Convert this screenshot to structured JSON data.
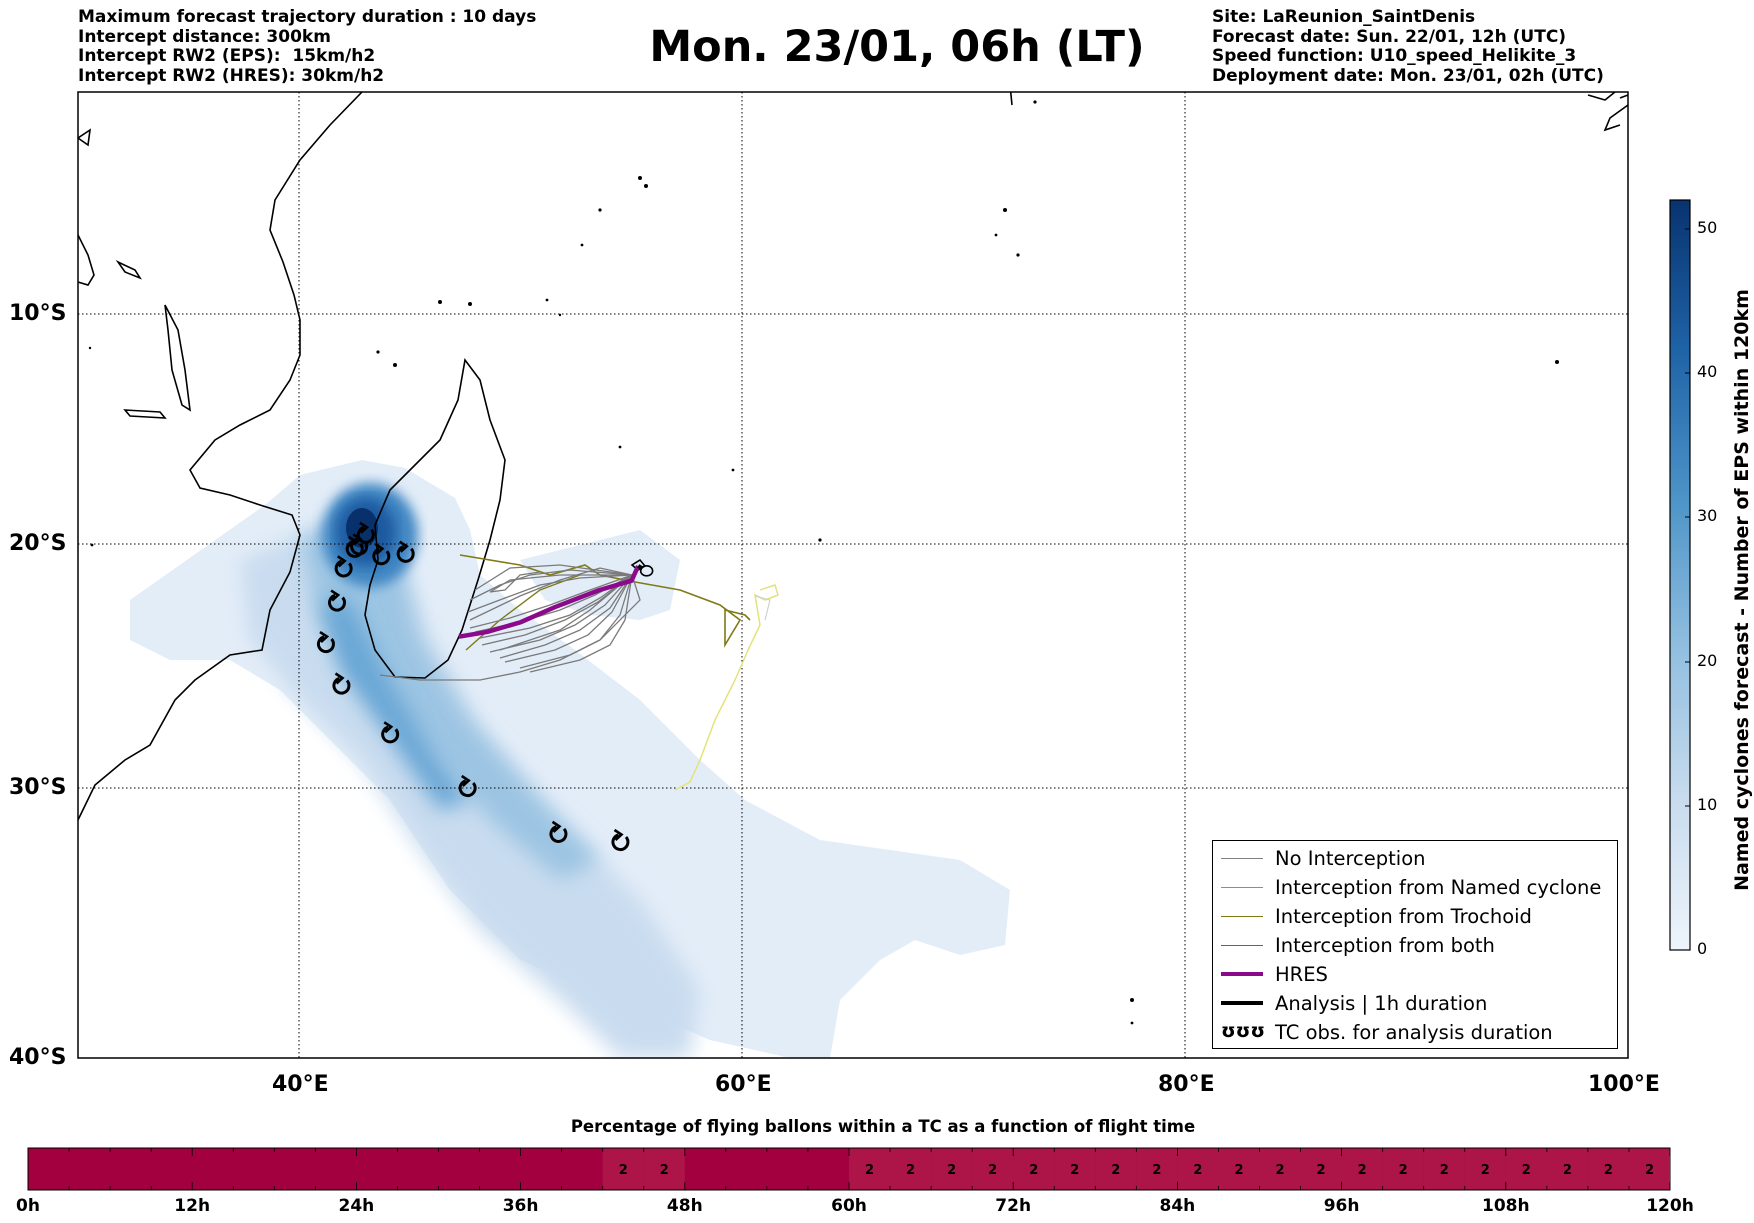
{
  "header_left": [
    "Maximum forecast trajectory duration : 10 days",
    "Intercept distance: 300km",
    "Intercept RW2 (EPS):  15km/h2",
    "Intercept RW2 (HRES): 30km/h2"
  ],
  "header_right": [
    "Site: LaReunion_SaintDenis",
    "Forecast date: Sun. 22/01, 12h (UTC)",
    "Speed function: U10_speed_Helikite_3",
    "Deployment date: Mon. 23/01, 02h (UTC)"
  ],
  "title": "Mon. 23/01, 06h (LT)",
  "colors": {
    "no_interception": "#808080",
    "named_cyclone": "#ff6a1a",
    "trochoid": "#7f7a16",
    "both": "#2e8b2e",
    "hres": "#8b0a8b",
    "analysis": "#000000",
    "percentage_bar": "#a3003f",
    "percentage_bar_cell": "#ad1448"
  },
  "map": {
    "lon_range": [
      30,
      100
    ],
    "lat_range": [
      -40,
      0
    ],
    "lon_ticks": [
      "40°E",
      "60°E",
      "80°E",
      "100°E"
    ],
    "lat_ticks": [
      "10°S",
      "20°S",
      "30°S",
      "40°S"
    ],
    "grid": true
  },
  "colorbar": {
    "label": "Named cyclones forecast - Number of EPS within 120km",
    "ticks": [
      "0",
      "10",
      "20",
      "30",
      "40",
      "50"
    ],
    "range": [
      0,
      52
    ]
  },
  "legend": [
    {
      "label": "No Interception",
      "color_key": "no_interception",
      "kind": "line"
    },
    {
      "label": "Interception from Named cyclone",
      "color_key": "named_cyclone",
      "kind": "line"
    },
    {
      "label": "Interception from Trochoid",
      "color_key": "trochoid",
      "kind": "line"
    },
    {
      "label": "Interception from both",
      "color_key": "both",
      "kind": "line"
    },
    {
      "label": "HRES",
      "color_key": "hres",
      "kind": "thick"
    },
    {
      "label": "Analysis | 1h duration",
      "color_key": "analysis",
      "kind": "thick"
    },
    {
      "label": "TC obs. for analysis duration",
      "color_key": "analysis",
      "kind": "symbol",
      "symbol": "ʊʊʊ"
    }
  ],
  "chart_data": [
    {
      "type": "scatter",
      "description_series": "TC obs. for analysis duration",
      "x_unit": "degrees east",
      "y_unit": "degrees latitude",
      "points": [
        {
          "lon": 43.0,
          "lat": -19.6
        },
        {
          "lon": 42.7,
          "lat": -20.1
        },
        {
          "lon": 42.5,
          "lat": -20.2
        },
        {
          "lon": 43.7,
          "lat": -20.5
        },
        {
          "lon": 44.8,
          "lat": -20.4
        },
        {
          "lon": 42.0,
          "lat": -21.0
        },
        {
          "lon": 41.7,
          "lat": -22.4
        },
        {
          "lon": 41.2,
          "lat": -24.1
        },
        {
          "lon": 41.9,
          "lat": -25.8
        },
        {
          "lon": 44.1,
          "lat": -27.8
        },
        {
          "lon": 47.6,
          "lat": -30.0
        },
        {
          "lon": 51.7,
          "lat": -31.7
        },
        {
          "lon": 54.5,
          "lat": -32.0
        }
      ]
    },
    {
      "type": "line",
      "description_series": "HRES",
      "points": [
        {
          "lon": 55.3,
          "lat": -20.9
        },
        {
          "lon": 55.0,
          "lat": -21.5
        },
        {
          "lon": 53.5,
          "lat": -21.9
        },
        {
          "lon": 51.5,
          "lat": -22.6
        },
        {
          "lon": 50.0,
          "lat": -23.2
        },
        {
          "lon": 48.5,
          "lat": -23.6
        },
        {
          "lon": 47.2,
          "lat": -23.8
        }
      ]
    },
    {
      "type": "line",
      "description_series": "Analysis | 1h duration",
      "points": [
        {
          "lon": 55.3,
          "lat": -20.9
        },
        {
          "lon": 55.5,
          "lat": -21.0
        }
      ]
    },
    {
      "type": "bar",
      "title": "Percentage of flying ballons within a TC as a function of flight time",
      "x_ticks": [
        "0h",
        "12h",
        "24h",
        "36h",
        "48h",
        "60h",
        "72h",
        "84h",
        "96h",
        "108h",
        "120h"
      ],
      "x_range_hours": [
        0,
        120
      ],
      "cells": [
        {
          "start_h": 42,
          "end_h": 45,
          "value": "2"
        },
        {
          "start_h": 45,
          "end_h": 48,
          "value": "2"
        },
        {
          "start_h": 60,
          "end_h": 63,
          "value": "2"
        },
        {
          "start_h": 63,
          "end_h": 66,
          "value": "2"
        },
        {
          "start_h": 66,
          "end_h": 69,
          "value": "2"
        },
        {
          "start_h": 69,
          "end_h": 72,
          "value": "2"
        },
        {
          "start_h": 72,
          "end_h": 75,
          "value": "2"
        },
        {
          "start_h": 75,
          "end_h": 78,
          "value": "2"
        },
        {
          "start_h": 78,
          "end_h": 81,
          "value": "2"
        },
        {
          "start_h": 81,
          "end_h": 84,
          "value": "2"
        },
        {
          "start_h": 84,
          "end_h": 87,
          "value": "2"
        },
        {
          "start_h": 87,
          "end_h": 90,
          "value": "2"
        },
        {
          "start_h": 90,
          "end_h": 93,
          "value": "2"
        },
        {
          "start_h": 93,
          "end_h": 96,
          "value": "2"
        },
        {
          "start_h": 96,
          "end_h": 99,
          "value": "2"
        },
        {
          "start_h": 99,
          "end_h": 102,
          "value": "2"
        },
        {
          "start_h": 102,
          "end_h": 105,
          "value": "2"
        },
        {
          "start_h": 105,
          "end_h": 108,
          "value": "2"
        },
        {
          "start_h": 108,
          "end_h": 111,
          "value": "2"
        },
        {
          "start_h": 111,
          "end_h": 114,
          "value": "2"
        },
        {
          "start_h": 114,
          "end_h": 117,
          "value": "2"
        },
        {
          "start_h": 117,
          "end_h": 120,
          "value": "2"
        }
      ]
    }
  ]
}
